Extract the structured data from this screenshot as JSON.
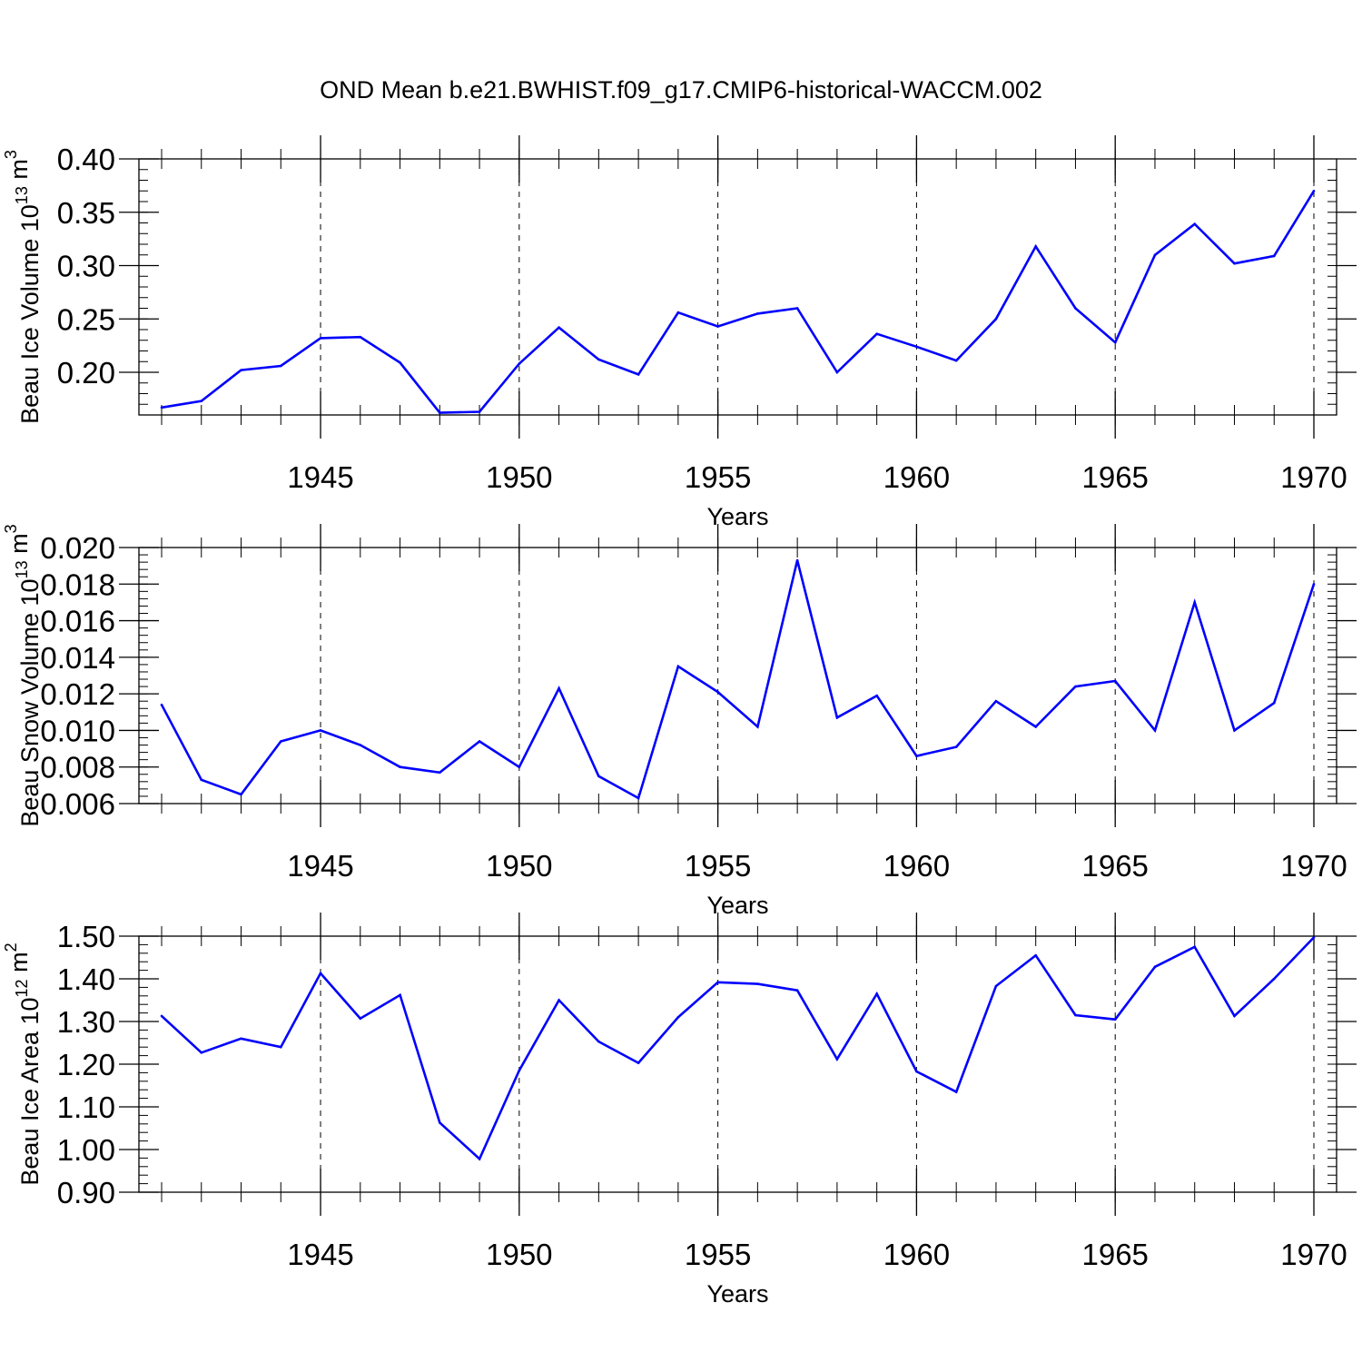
{
  "title": "OND Mean b.e21.BWHIST.f09_g17.CMIP6-historical-WACCM.002",
  "chart_data": [
    {
      "type": "line",
      "ylabel": "Beau Ice Volume 10",
      "ylabel_sup": "13",
      "ylabel_unit": " m",
      "ylabel_unit_sup": "3",
      "xlabel": "Years",
      "xlim": [
        1941,
        1970
      ],
      "ylim": [
        0.16,
        0.4
      ],
      "y_ticks": [
        "0.20",
        "0.25",
        "0.30",
        "0.35",
        "0.40"
      ],
      "x_ticks": [
        "1945",
        "1950",
        "1955",
        "1960",
        "1965",
        "1970"
      ],
      "color": "#0000ff",
      "x": [
        1941,
        1942,
        1943,
        1944,
        1945,
        1946,
        1947,
        1948,
        1949,
        1950,
        1951,
        1952,
        1953,
        1954,
        1955,
        1956,
        1957,
        1958,
        1959,
        1960,
        1961,
        1962,
        1963,
        1964,
        1965,
        1966,
        1967,
        1968,
        1969,
        1970
      ],
      "values": [
        0.167,
        0.173,
        0.202,
        0.206,
        0.232,
        0.233,
        0.209,
        0.162,
        0.163,
        0.208,
        0.242,
        0.212,
        0.198,
        0.256,
        0.243,
        0.255,
        0.26,
        0.2,
        0.236,
        0.224,
        0.211,
        0.25,
        0.318,
        0.26,
        0.228,
        0.31,
        0.339,
        0.302,
        0.309,
        0.37
      ]
    },
    {
      "type": "line",
      "ylabel": "Beau Snow Volume 10",
      "ylabel_sup": "13",
      "ylabel_unit": " m",
      "ylabel_unit_sup": "3",
      "xlabel": "Years",
      "xlim": [
        1941,
        1970
      ],
      "ylim": [
        0.006,
        0.02
      ],
      "y_ticks": [
        "0.006",
        "0.008",
        "0.010",
        "0.012",
        "0.014",
        "0.016",
        "0.018",
        "0.020"
      ],
      "x_ticks": [
        "1945",
        "1950",
        "1955",
        "1960",
        "1965",
        "1970"
      ],
      "color": "#0000ff",
      "x": [
        1941,
        1942,
        1943,
        1944,
        1945,
        1946,
        1947,
        1948,
        1949,
        1950,
        1951,
        1952,
        1953,
        1954,
        1955,
        1956,
        1957,
        1958,
        1959,
        1960,
        1961,
        1962,
        1963,
        1964,
        1965,
        1966,
        1967,
        1968,
        1969,
        1970
      ],
      "values": [
        0.0114,
        0.0073,
        0.0065,
        0.0094,
        0.01,
        0.0092,
        0.008,
        0.0077,
        0.0094,
        0.008,
        0.0123,
        0.0075,
        0.0063,
        0.0135,
        0.0121,
        0.0102,
        0.0193,
        0.0107,
        0.0119,
        0.0086,
        0.0091,
        0.0116,
        0.0102,
        0.0124,
        0.0127,
        0.01,
        0.017,
        0.01,
        0.0115,
        0.018
      ]
    },
    {
      "type": "line",
      "ylabel": "Beau Ice Area 10",
      "ylabel_sup": "12",
      "ylabel_unit": " m",
      "ylabel_unit_sup": "2",
      "xlabel": "Years",
      "xlim": [
        1941,
        1970
      ],
      "ylim": [
        0.9,
        1.5
      ],
      "y_ticks": [
        "0.90",
        "1.00",
        "1.10",
        "1.20",
        "1.30",
        "1.40",
        "1.50"
      ],
      "x_ticks": [
        "1945",
        "1950",
        "1955",
        "1960",
        "1965",
        "1970"
      ],
      "color": "#0000ff",
      "x": [
        1941,
        1942,
        1943,
        1944,
        1945,
        1946,
        1947,
        1948,
        1949,
        1950,
        1951,
        1952,
        1953,
        1954,
        1955,
        1956,
        1957,
        1958,
        1959,
        1960,
        1961,
        1962,
        1963,
        1964,
        1965,
        1966,
        1967,
        1968,
        1969,
        1970
      ],
      "values": [
        1.313,
        1.227,
        1.26,
        1.24,
        1.413,
        1.307,
        1.362,
        1.063,
        0.978,
        1.185,
        1.35,
        1.253,
        1.203,
        1.31,
        1.392,
        1.388,
        1.373,
        1.212,
        1.365,
        1.183,
        1.135,
        1.383,
        1.455,
        1.315,
        1.305,
        1.428,
        1.475,
        1.313,
        1.4,
        1.497
      ]
    }
  ]
}
